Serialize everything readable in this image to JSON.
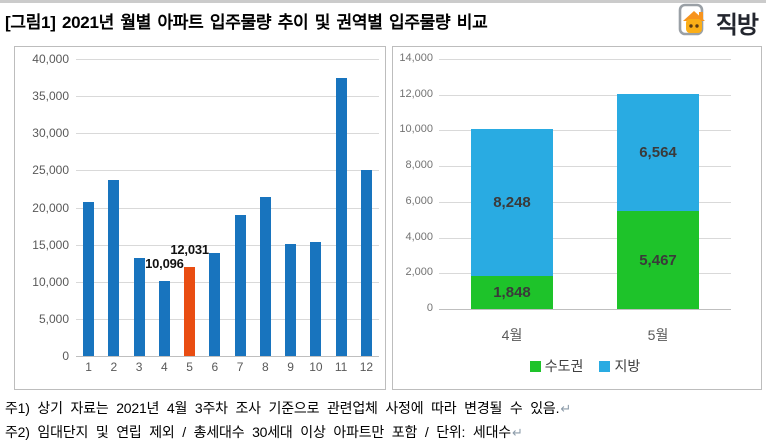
{
  "header": {
    "title": "[그림1] 2021년 월별 아파트 입주물량 추이 및 권역별 입주물량 비교",
    "logo_text": "직방"
  },
  "colors": {
    "bar_blue": "#1874BE",
    "bar_orange": "#E94D12",
    "stack_green": "#1EC32A",
    "stack_cyan": "#29ABE2",
    "gridline": "#D9D9D9",
    "axis_text": "#595959",
    "panel_border": "#BDBDBD",
    "logo_roof_orange": "#F7941E",
    "logo_body_yellow": "#FBAE17"
  },
  "chart_data": [
    {
      "type": "bar",
      "title": "",
      "xlabel": "",
      "ylabel": "",
      "categories": [
        "1",
        "2",
        "3",
        "4",
        "5",
        "6",
        "7",
        "8",
        "9",
        "10",
        "11",
        "12"
      ],
      "values": [
        20700,
        23650,
        13200,
        10096,
        12031,
        13900,
        19050,
        21350,
        15050,
        15400,
        37500,
        25100
      ],
      "highlight_index": 4,
      "bar_color": "#1874BE",
      "highlight_color": "#E94D12",
      "data_labels": [
        {
          "index": 3,
          "text": "10,096"
        },
        {
          "index": 4,
          "text": "12,031"
        }
      ],
      "ylim": [
        0,
        40000
      ],
      "ytick_step": 5000,
      "ytick_labels": [
        "0",
        "5,000",
        "10,000",
        "15,000",
        "20,000",
        "25,000",
        "30,000",
        "35,000",
        "40,000"
      ],
      "grid": true,
      "legend_position": "none"
    },
    {
      "type": "stacked-bar",
      "title": "",
      "xlabel": "",
      "ylabel": "",
      "categories": [
        "4월",
        "5월"
      ],
      "series": [
        {
          "name": "수도권",
          "color": "#1EC32A",
          "values": [
            1848,
            5467
          ],
          "labels": [
            "1,848",
            "5,467"
          ]
        },
        {
          "name": "지방",
          "color": "#29ABE2",
          "values": [
            8248,
            6564
          ],
          "labels": [
            "8,248",
            "6,564"
          ]
        }
      ],
      "totals": [
        10096,
        12031
      ],
      "ylim": [
        0,
        14000
      ],
      "ytick_step": 2000,
      "ytick_labels": [
        "0",
        "2,000",
        "4,000",
        "6,000",
        "8,000",
        "10,000",
        "12,000",
        "14,000"
      ],
      "grid": true,
      "legend_position": "bottom"
    }
  ],
  "footnotes": [
    {
      "text": "주1) 상기 자료는 2021년 4월 3주차 조사 기준으로 관련업체 사정에 따라 변경될 수 있음.",
      "mark": "↵"
    },
    {
      "text": "주2) 임대단지 및 연립 제외 / 총세대수 30세대 이상 아파트만 포함 / 단위: 세대수",
      "mark": "↵"
    }
  ]
}
